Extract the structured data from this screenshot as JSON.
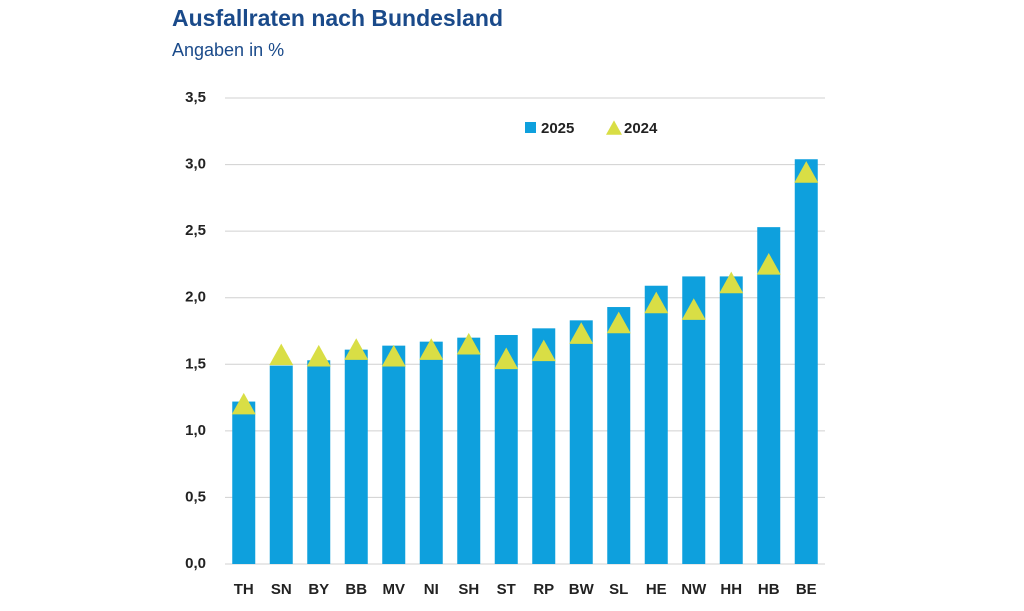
{
  "chart_data": {
    "type": "bar",
    "title": "Ausfallraten nach Bundesland",
    "subtitle": "Angaben in %",
    "categories": [
      "TH",
      "SN",
      "BY",
      "BB",
      "MV",
      "NI",
      "SH",
      "ST",
      "RP",
      "BW",
      "SL",
      "HE",
      "NW",
      "HH",
      "HB",
      "BE"
    ],
    "series": [
      {
        "name": "2025",
        "color": "#0ea0dd",
        "marker": "bar",
        "values": [
          1.22,
          1.49,
          1.53,
          1.61,
          1.64,
          1.67,
          1.7,
          1.72,
          1.77,
          1.83,
          1.93,
          2.09,
          2.16,
          2.16,
          2.53,
          3.04
        ]
      },
      {
        "name": "2024",
        "color": "#d9de45",
        "marker": "triangle",
        "values": [
          1.2,
          1.57,
          1.56,
          1.61,
          1.56,
          1.61,
          1.65,
          1.54,
          1.6,
          1.73,
          1.81,
          1.96,
          1.91,
          2.11,
          2.25,
          2.94
        ]
      }
    ],
    "ylim": [
      0,
      3.5
    ],
    "yticks": [
      {
        "value": 0,
        "label": "0,0"
      },
      {
        "value": 0.5,
        "label": "0,5"
      },
      {
        "value": 1,
        "label": "1,0"
      },
      {
        "value": 1.5,
        "label": "1,5"
      },
      {
        "value": 2,
        "label": "2,0"
      },
      {
        "value": 2.5,
        "label": "2,5"
      },
      {
        "value": 3,
        "label": "3,0"
      },
      {
        "value": 3.5,
        "label": "3,5"
      }
    ],
    "grid": true
  }
}
